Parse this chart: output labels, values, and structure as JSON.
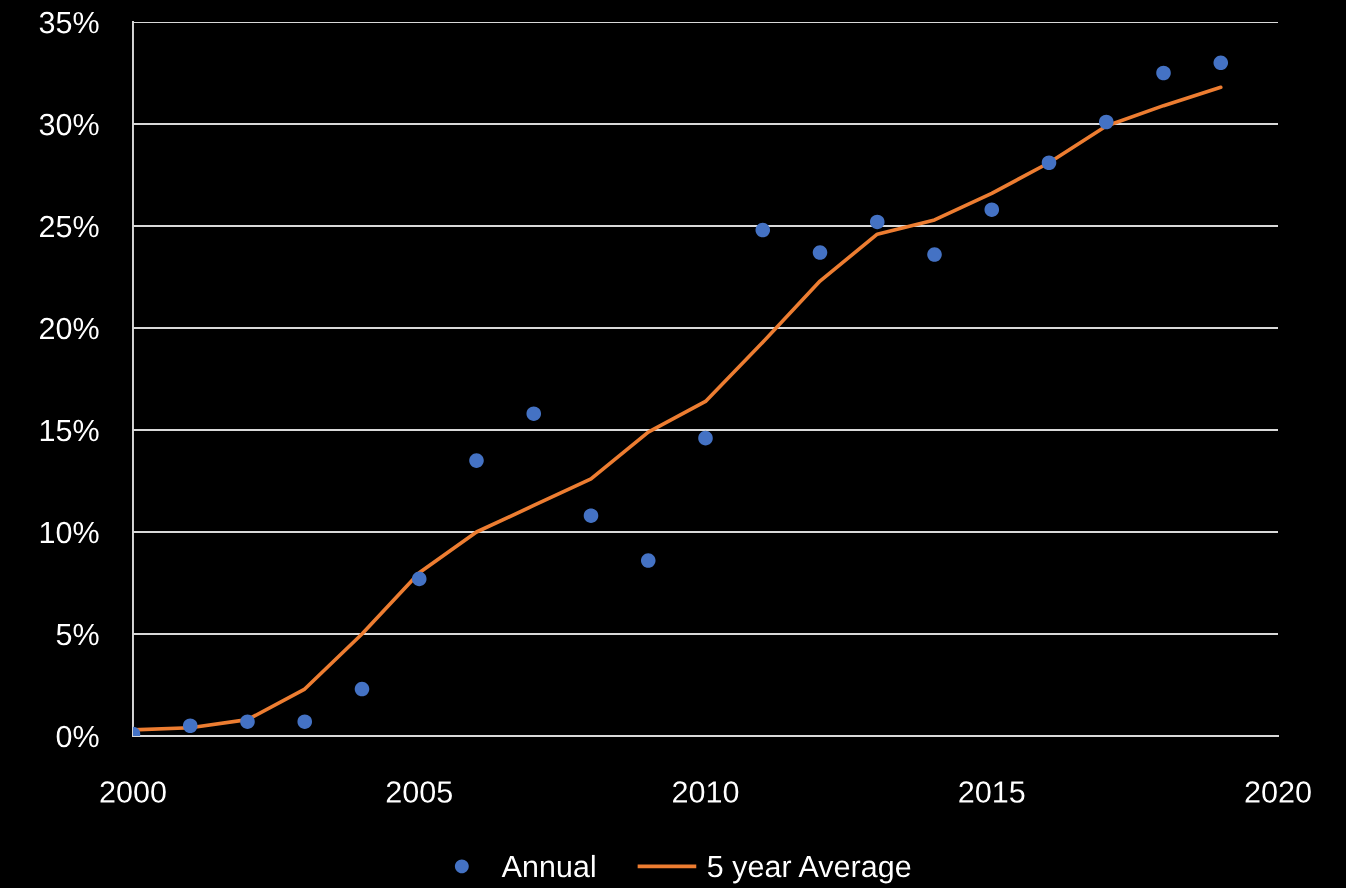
{
  "chart_data": {
    "type": "scatter",
    "x": [
      2000,
      2001,
      2002,
      2003,
      2004,
      2005,
      2006,
      2007,
      2008,
      2009,
      2010,
      2011,
      2012,
      2013,
      2014,
      2015,
      2016,
      2017,
      2018,
      2019
    ],
    "series": [
      {
        "name": "Annual",
        "marker": "circle",
        "color": "#4472c4",
        "values": [
          0.1,
          0.5,
          0.7,
          0.7,
          2.3,
          7.7,
          13.5,
          15.8,
          10.8,
          8.6,
          14.6,
          24.8,
          23.7,
          25.2,
          23.6,
          25.8,
          28.1,
          30.1,
          32.5,
          33.0
        ]
      },
      {
        "name": "5 year Average",
        "type": "line",
        "line_style": "solid",
        "color": "#ed7d31",
        "values": [
          0.3,
          0.4,
          0.8,
          2.3,
          5.0,
          8.0,
          10.0,
          11.3,
          12.6,
          14.9,
          16.4,
          19.3,
          22.3,
          24.6,
          25.3,
          26.6,
          28.1,
          29.9,
          30.9,
          31.8
        ]
      }
    ],
    "xlim": [
      2000,
      2020
    ],
    "xticks": [
      2000,
      2005,
      2010,
      2015,
      2020
    ],
    "ylim": [
      0,
      35
    ],
    "yticks": [
      {
        "value": 0,
        "label": "0%"
      },
      {
        "value": 5,
        "label": "5%"
      },
      {
        "value": 10,
        "label": "10%"
      },
      {
        "value": 15,
        "label": "15%"
      },
      {
        "value": 20,
        "label": "20%"
      },
      {
        "value": 25,
        "label": "25%"
      },
      {
        "value": 30,
        "label": "30%"
      },
      {
        "value": 35,
        "label": "35%"
      }
    ],
    "grid": "y",
    "legend": "bottom"
  }
}
